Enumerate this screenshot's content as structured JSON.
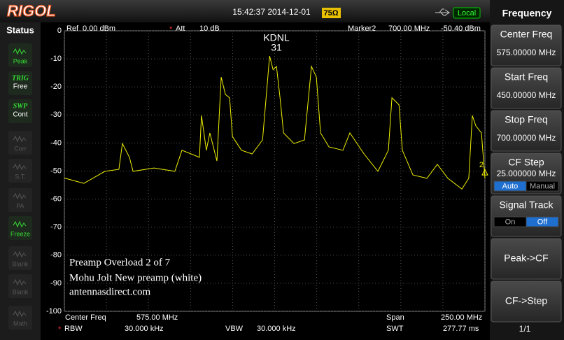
{
  "header": {
    "logo": "RIGOL",
    "datetime": "15:42:37 2014-12-01",
    "impedance": "75Ω",
    "mode": "Local"
  },
  "status": {
    "title": "Status",
    "items": [
      {
        "label": "Peak",
        "active": true
      },
      {
        "label": "TRIG",
        "value": "Free",
        "active": true
      },
      {
        "label": "SWP",
        "value": "Cont",
        "active": true
      },
      {
        "label": "Corr",
        "active": false
      },
      {
        "label": "S.T.",
        "active": false
      },
      {
        "label": "PA",
        "active": false
      },
      {
        "label": "Freeze",
        "active": true
      },
      {
        "label": "Blank",
        "active": false
      },
      {
        "label": "Blank",
        "active": false
      },
      {
        "label": "Math",
        "active": false
      }
    ]
  },
  "settings": {
    "ref_label": "Ref",
    "ref": "0.00 dBm",
    "att_flag": "*",
    "att_label": "Att",
    "att": "10 dB",
    "marker_label": "Marker2",
    "marker_freq": "700.00 MHz",
    "marker_level": "-50.40 dBm",
    "center_label": "Center Freq",
    "center": "575.00 MHz",
    "span_label": "Span",
    "span": "250.00 MHz",
    "rbw_flag": "*",
    "rbw_label": "RBW",
    "rbw": "30.000 kHz",
    "vbw_label": "VBW",
    "vbw": "30.000 kHz",
    "swt_label": "SWT",
    "swt": "277.77 ms"
  },
  "overlay": [
    "Preamp Overload 2 of 7",
    "Mohu Jolt New  preamp (white)",
    "antennasdirect.com"
  ],
  "chart_data": {
    "type": "line",
    "color": "#f0f000",
    "x": [
      450,
      461.6,
      474.1,
      482.4,
      484.5,
      488.7,
      490.8,
      503.3,
      515.7,
      519.9,
      530.3,
      531.5,
      534.4,
      536.5,
      540.7,
      543.2,
      545.7,
      548.2,
      549.9,
      555.3,
      561.6,
      567.8,
      572,
      574.1,
      576.1,
      578.2,
      580.3,
      586.5,
      592.7,
      596.9,
      599.8,
      602.3,
      607.3,
      615.6,
      619.7,
      628.1,
      636.4,
      642.6,
      644.7,
      648.9,
      650.9,
      657.2,
      665.5,
      671.7,
      678,
      686.3,
      690.4,
      692.5,
      694.6,
      697.9,
      700
    ],
    "values": [
      -52.5,
      -54.4,
      -50.1,
      -49.4,
      -40.2,
      -45.1,
      -50.1,
      -48.9,
      -50.1,
      -42.6,
      -45.1,
      -30.2,
      -42.6,
      -36.4,
      -46.4,
      -16.5,
      -22.7,
      -23.9,
      -37.7,
      -42.6,
      -43.9,
      -38.9,
      -9,
      -13.9,
      -12.7,
      -23.9,
      -36.4,
      -40.2,
      -38.9,
      -12.7,
      -16.5,
      -36.4,
      -41.4,
      -42.6,
      -36.4,
      -43.9,
      -50.1,
      -42.6,
      -23.9,
      -26.4,
      -42.6,
      -51.4,
      -52.6,
      -47.6,
      -52.6,
      -56.4,
      -52.6,
      -30.2,
      -33.9,
      -36.4,
      -52.6
    ],
    "xlim": [
      450,
      700
    ],
    "ylim": [
      -100,
      0
    ],
    "xticks": [
      450,
      475,
      500,
      525,
      550,
      575,
      600,
      625,
      650,
      675,
      700
    ],
    "yticks": [
      0,
      -10,
      -20,
      -30,
      -40,
      -50,
      -60,
      -70,
      -80,
      -90,
      -100
    ],
    "grid": true,
    "annotations": [
      "KDNL",
      "31"
    ],
    "marker": {
      "label": "2",
      "x": 700,
      "y": -50.4
    }
  },
  "menu": {
    "title": "Frequency",
    "items": [
      {
        "label": "Center Freq",
        "value": "575.00000 MHz"
      },
      {
        "label": "Start Freq",
        "value": "450.00000 MHz"
      },
      {
        "label": "Stop Freq",
        "value": "700.00000 MHz"
      },
      {
        "label": "CF Step",
        "value": "25.000000 MHz",
        "options": [
          "Auto",
          "Manual"
        ],
        "selected": 0
      },
      {
        "label": "Signal Track",
        "options": [
          "On",
          "Off"
        ],
        "selected": 1
      },
      {
        "label": "Peak->CF"
      },
      {
        "label": "CF->Step"
      }
    ],
    "page": "1/1"
  }
}
